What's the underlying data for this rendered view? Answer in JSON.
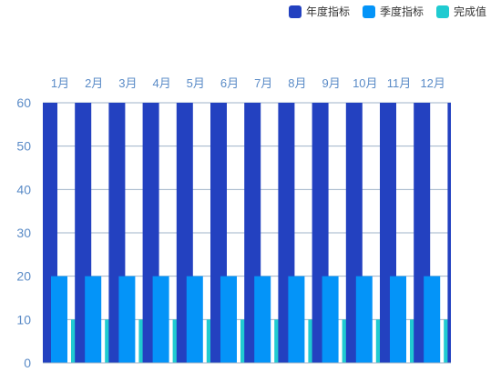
{
  "chart_data": {
    "type": "bar",
    "categories": [
      "1月",
      "2月",
      "3月",
      "4月",
      "5月",
      "6月",
      "7月",
      "8月",
      "9月",
      "10月",
      "11月",
      "12月"
    ],
    "series": [
      {
        "name": "年度指标",
        "values": [
          60,
          60,
          60,
          60,
          60,
          60,
          60,
          60,
          60,
          60,
          60,
          60
        ],
        "color": "#2341C0"
      },
      {
        "name": "季度指标",
        "values": [
          20,
          20,
          20,
          20,
          20,
          20,
          20,
          20,
          20,
          20,
          20,
          20
        ],
        "color": "#0494F8"
      },
      {
        "name": "完成值",
        "values": [
          10,
          10,
          10,
          10,
          10,
          10,
          10,
          10,
          10,
          10,
          10,
          10
        ],
        "color": "#20CBD1"
      }
    ],
    "ylim": [
      0,
      60
    ],
    "yticks": [
      0,
      10,
      20,
      30,
      40,
      50,
      60
    ],
    "x_axis_position": "top",
    "grid": true,
    "legend_position": "top-right",
    "axis_label_color": "#5A8BC7"
  }
}
